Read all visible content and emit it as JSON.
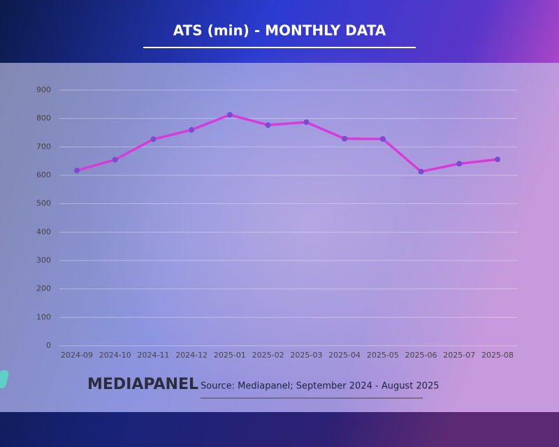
{
  "chart_data": {
    "type": "line",
    "title": "ATS (min) - MONTHLY DATA",
    "categories": [
      "2024-09",
      "2024-10",
      "2024-11",
      "2024-12",
      "2025-01",
      "2025-02",
      "2025-03",
      "2025-04",
      "2025-05",
      "2025-06",
      "2025-07",
      "2025-08"
    ],
    "values": [
      617,
      655,
      727,
      760,
      813,
      777,
      787,
      729,
      728,
      613,
      641,
      656
    ],
    "color": "#d93ad9",
    "marker_color": "#7a4ad0",
    "ylim": [
      0,
      900
    ],
    "yticks": [
      0,
      100,
      200,
      300,
      400,
      500,
      600,
      700,
      800,
      900
    ],
    "grid": true
  },
  "footer": {
    "brand": "MEDIAPANEL",
    "source": "Source: Mediapanel; September 2024 - August 2025"
  }
}
